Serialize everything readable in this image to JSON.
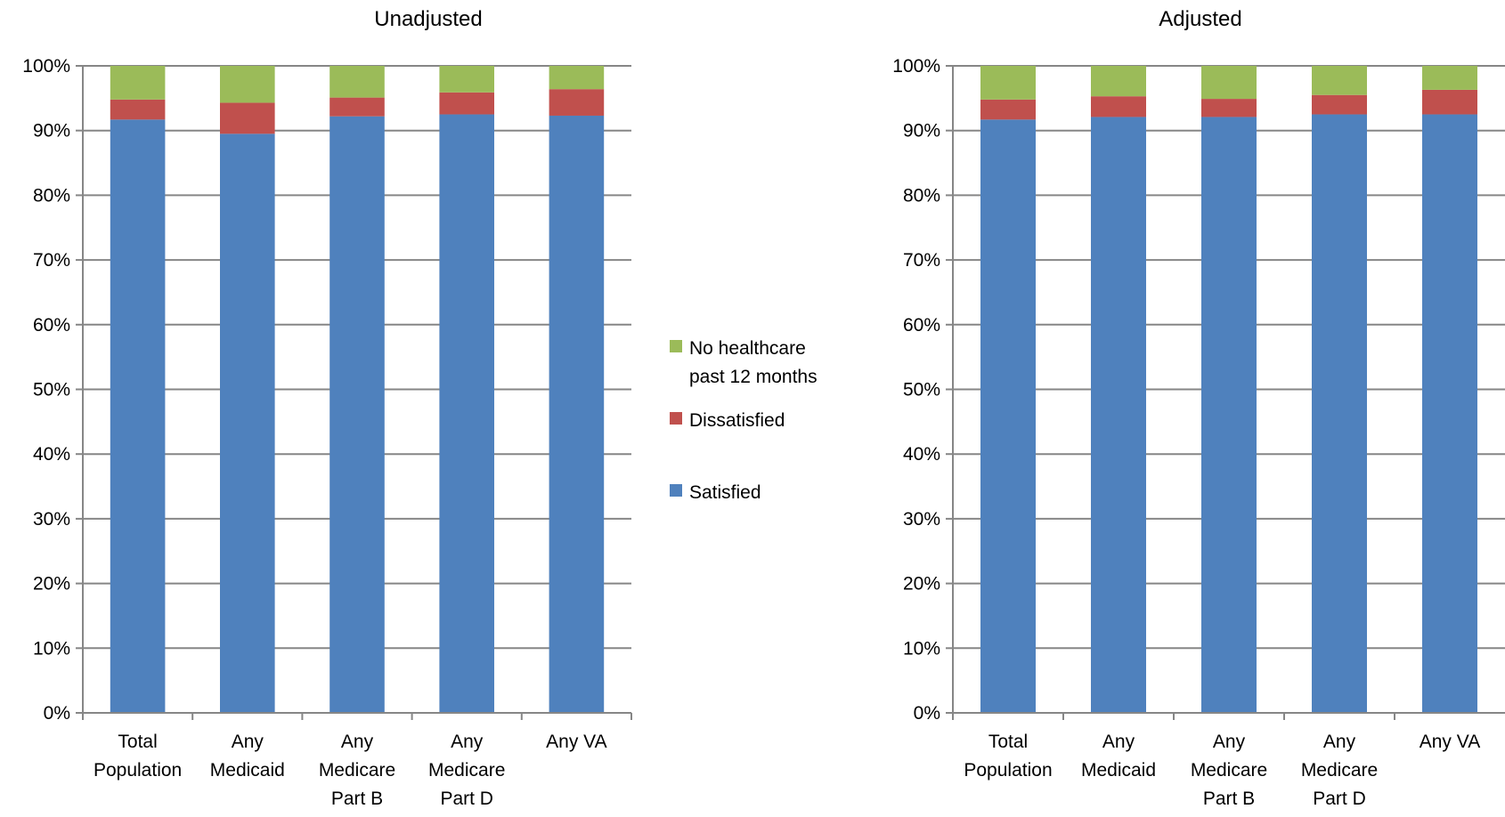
{
  "chart_data": [
    {
      "type": "bar",
      "stacked": true,
      "percent_axis": true,
      "title": "Unadjusted",
      "categories": [
        [
          "Total",
          "Population"
        ],
        [
          "Any",
          "Medicaid"
        ],
        [
          "Any",
          "Medicare",
          "Part B"
        ],
        [
          "Any",
          "Medicare",
          "Part D"
        ],
        [
          "Any VA"
        ]
      ],
      "series": [
        {
          "name": "Satisfied",
          "color": "#4F81BD",
          "values": [
            91.7,
            89.5,
            92.2,
            92.5,
            92.3
          ]
        },
        {
          "name": "Dissatisfied",
          "color": "#C0504D",
          "values": [
            3.1,
            4.8,
            2.9,
            3.4,
            4.1
          ]
        },
        {
          "name": "No healthcare past 12 months",
          "color": "#9BBB59",
          "values": [
            5.2,
            5.7,
            4.9,
            4.1,
            3.6
          ]
        }
      ],
      "ylim": [
        0,
        100
      ],
      "yticks": [
        "0%",
        "10%",
        "20%",
        "30%",
        "40%",
        "50%",
        "60%",
        "70%",
        "80%",
        "90%",
        "100%"
      ],
      "grid": true
    },
    {
      "type": "bar",
      "stacked": true,
      "percent_axis": true,
      "title": "Adjusted",
      "categories": [
        [
          "Total",
          "Population"
        ],
        [
          "Any",
          "Medicaid"
        ],
        [
          "Any",
          "Medicare",
          "Part B"
        ],
        [
          "Any",
          "Medicare",
          "Part D"
        ],
        [
          "Any VA"
        ]
      ],
      "series": [
        {
          "name": "Satisfied",
          "color": "#4F81BD",
          "values": [
            91.7,
            92.1,
            92.1,
            92.5,
            92.5
          ]
        },
        {
          "name": "Dissatisfied",
          "color": "#C0504D",
          "values": [
            3.1,
            3.2,
            2.8,
            3.0,
            3.8
          ]
        },
        {
          "name": "No healthcare past 12 months",
          "color": "#9BBB59",
          "values": [
            5.2,
            4.7,
            5.1,
            4.5,
            3.7
          ]
        }
      ],
      "ylim": [
        0,
        100
      ],
      "yticks": [
        "0%",
        "10%",
        "20%",
        "30%",
        "40%",
        "50%",
        "60%",
        "70%",
        "80%",
        "90%",
        "100%"
      ],
      "grid": true
    }
  ],
  "legend": {
    "position": "center",
    "items": [
      {
        "lines": [
          "No healthcare",
          "past 12 months"
        ],
        "color": "#9BBB59"
      },
      {
        "lines": [
          "Dissatisfied"
        ],
        "color": "#C0504D"
      },
      {
        "lines": [
          "Satisfied"
        ],
        "color": "#4F81BD"
      }
    ]
  }
}
